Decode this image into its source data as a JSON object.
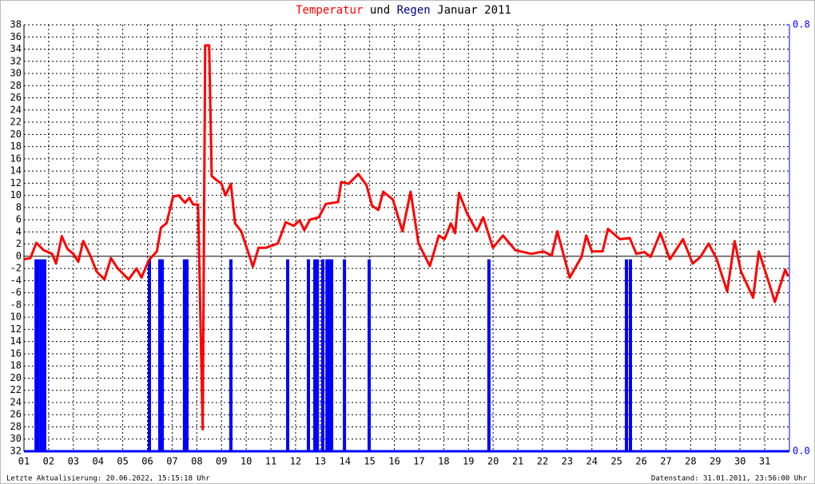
{
  "chart_data": {
    "type": "line",
    "title": [
      "Temperatur",
      "und",
      "Regen",
      "Januar 2011"
    ],
    "footer_left": "Letzte Aktualisierung: 20.06.2022, 15:15:18 Uhr",
    "footer_right": "Datenstand: 31.01.2011, 23:56:00 Uhr",
    "grid": true,
    "xlim": [
      1,
      32
    ],
    "xticks": [
      {
        "value": 1,
        "label": "01"
      },
      {
        "value": 2,
        "label": "02"
      },
      {
        "value": 3,
        "label": "03"
      },
      {
        "value": 4,
        "label": "04"
      },
      {
        "value": 5,
        "label": "05"
      },
      {
        "value": 6,
        "label": "06"
      },
      {
        "value": 7,
        "label": "07"
      },
      {
        "value": 8,
        "label": "08"
      },
      {
        "value": 9,
        "label": "09"
      },
      10,
      11,
      12,
      13,
      14,
      15,
      16,
      17,
      18,
      19,
      20,
      21,
      22,
      23,
      24,
      25,
      26,
      27,
      28,
      29,
      30,
      31
    ],
    "ylim": [
      -32,
      38
    ],
    "yticks": [
      {
        "value": -32,
        "label": "32"
      },
      {
        "value": -30,
        "label": "30"
      },
      {
        "value": -28,
        "label": "28"
      },
      {
        "value": -26,
        "label": "26"
      },
      {
        "value": -24,
        "label": "24"
      },
      {
        "value": -22,
        "label": "22"
      },
      {
        "value": -20,
        "label": "20"
      },
      {
        "value": -18,
        "label": "18"
      },
      {
        "value": -16,
        "label": "16"
      },
      {
        "value": -14,
        "label": "14"
      },
      {
        "value": -12,
        "label": "12"
      },
      {
        "value": -10,
        "label": "10"
      },
      -8,
      -6,
      -4,
      -2,
      0,
      2,
      4,
      6,
      8,
      10,
      12,
      14,
      16,
      18,
      20,
      22,
      24,
      26,
      28,
      30,
      32,
      34,
      36,
      38
    ],
    "y2lim": [
      0,
      0.8
    ],
    "y2ticks": [
      {
        "value": 0,
        "label": "0.0"
      },
      0.8
    ],
    "series": [
      {
        "type": "line",
        "color": "#ff0000",
        "x": [
          1.0,
          1.26,
          1.5,
          1.8,
          2.14,
          2.3,
          2.53,
          2.76,
          3.0,
          3.2,
          3.4,
          3.7,
          3.94,
          4.26,
          4.52,
          4.8,
          5.24,
          5.56,
          5.76,
          6.06,
          6.38,
          6.55,
          6.77,
          7.04,
          7.26,
          7.52,
          7.7,
          7.85,
          8.05,
          8.24,
          8.34,
          8.5,
          8.6,
          8.77,
          9.0,
          9.16,
          9.38,
          9.55,
          9.8,
          10.07,
          10.27,
          10.5,
          10.8,
          11.28,
          11.6,
          11.93,
          12.16,
          12.35,
          12.58,
          12.94,
          13.23,
          13.72,
          13.85,
          14.15,
          14.54,
          14.87,
          15.1,
          15.35,
          15.55,
          15.94,
          16.33,
          16.66,
          16.98,
          17.44,
          17.8,
          18.03,
          18.29,
          18.46,
          18.62,
          18.95,
          19.34,
          19.6,
          19.99,
          20.4,
          20.9,
          21.55,
          22.04,
          22.37,
          22.6,
          23.1,
          23.58,
          23.77,
          24.0,
          24.43,
          24.65,
          25.14,
          25.53,
          25.8,
          26.12,
          26.38,
          26.77,
          27.16,
          27.69,
          28.08,
          28.4,
          28.73,
          29.06,
          29.48,
          29.78,
          30.04,
          30.53,
          30.76,
          31.18,
          31.41,
          31.83,
          31.95
        ],
        "values": [
          -0.5,
          -0.3,
          2.2,
          1,
          0.4,
          -1.2,
          3.3,
          1.2,
          0.4,
          -0.9,
          2.5,
          0,
          -2.5,
          -3.8,
          -0.3,
          -2,
          -3.8,
          -2,
          -3.5,
          -0.6,
          0.8,
          4.7,
          5.4,
          9.8,
          10,
          8.8,
          9.6,
          8.5,
          8.5,
          -28.4,
          34.6,
          34.6,
          13.2,
          12.6,
          11.9,
          10,
          11.9,
          5.4,
          4.1,
          0.8,
          -1.7,
          1.4,
          1.4,
          2.1,
          5.6,
          5,
          5.9,
          4.3,
          6,
          6.4,
          8.6,
          8.9,
          12.2,
          11.9,
          13.5,
          11.7,
          8.3,
          7.6,
          10.6,
          9.3,
          4.1,
          10.6,
          2.1,
          -1.6,
          3.4,
          2.8,
          5.4,
          3.8,
          10.4,
          7,
          4.1,
          6.4,
          1.4,
          3.4,
          1,
          0.4,
          0.8,
          0.1,
          4.1,
          -3.5,
          -0.1,
          3.4,
          0.8,
          0.8,
          4.5,
          2.8,
          3,
          0.4,
          0.7,
          -0.1,
          3.8,
          -0.5,
          2.8,
          -1.2,
          -0.1,
          2.1,
          -0.5,
          -5.8,
          2.5,
          -2.5,
          -6.8,
          0.8,
          -4.5,
          -7.5,
          -2.2,
          -3.3
        ]
      },
      {
        "type": "bar",
        "axis": "y2",
        "color": "#0000ff",
        "x": [
          1.49,
          1.58,
          1.71,
          1.84,
          6.08,
          6.5,
          6.6,
          7.5,
          7.6,
          9.38,
          11.68,
          12.52,
          12.78,
          12.88,
          13.1,
          13.27,
          13.36,
          13.46,
          13.98,
          14.98,
          19.83,
          25.4,
          25.56
        ],
        "values": [
          0.36,
          0.36,
          0.36,
          0.36,
          0.36,
          0.36,
          0.36,
          0.36,
          0.36,
          0.36,
          0.36,
          0.36,
          0.36,
          0.36,
          0.36,
          0.36,
          0.36,
          0.36,
          0.36,
          0.36,
          0.36,
          0.36,
          0.36
        ]
      }
    ]
  }
}
